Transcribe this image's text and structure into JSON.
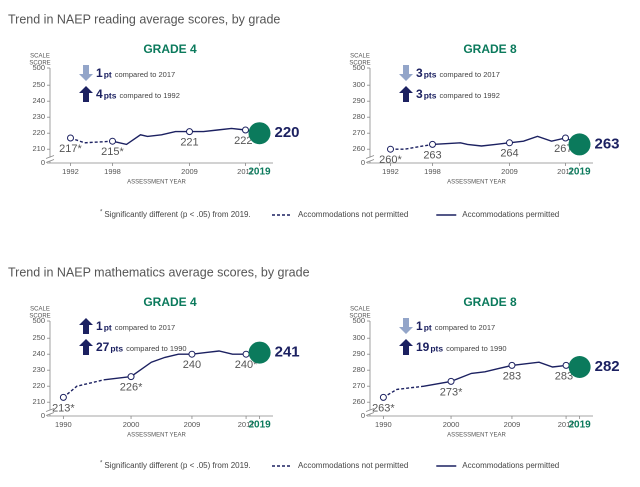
{
  "sections": [
    {
      "title": "Trend in NAEP reading average scores, by grade",
      "footnote": {
        "mark": "*",
        "text": "Significantly different (p < .05) from 2019."
      }
    },
    {
      "title": "Trend in NAEP mathematics average scores, by grade",
      "footnote": {
        "mark": "*",
        "text": "Significantly different (p < .05) from 2019."
      }
    }
  ],
  "chart_data": [
    {
      "type": "line",
      "title": "GRADE 4",
      "y_label": [
        "SCALE",
        "SCORE"
      ],
      "x_label": "ASSESSMENT YEAR",
      "xlim": [
        1990.5,
        2019.5
      ],
      "xticks": [
        1992,
        1998,
        2009,
        2017,
        2019
      ],
      "ylim": [
        207,
        252
      ],
      "yticks": [
        0,
        210,
        220,
        230,
        240,
        250,
        500
      ],
      "axis_break": true,
      "line_color": "#1c2161",
      "highlight_color": "#0b7a5c",
      "comparisons": [
        {
          "direction": "down",
          "value": 1,
          "unit": "pt",
          "text": "compared to 2017"
        },
        {
          "direction": "up",
          "value": 4,
          "unit": "pts",
          "text": "compared to 1992"
        }
      ],
      "series": [
        {
          "name": "Accommodations not permitted",
          "dash": true,
          "x": [
            1992,
            1994,
            1998
          ],
          "values": [
            217,
            214,
            215
          ],
          "value_labels": [
            "217*",
            null,
            null
          ]
        },
        {
          "name": "Accommodations permitted",
          "dash": false,
          "x": [
            1998,
            2000,
            2002,
            2003,
            2005,
            2007,
            2009,
            2011,
            2013,
            2015,
            2017,
            2019
          ],
          "values": [
            215,
            213,
            219,
            218,
            219,
            221,
            221,
            221,
            222,
            223,
            222,
            220
          ],
          "value_labels": [
            "215*",
            null,
            null,
            null,
            null,
            null,
            "221",
            null,
            null,
            null,
            "222*",
            "220"
          ]
        }
      ]
    },
    {
      "type": "line",
      "title": "GRADE 8",
      "y_label": [
        "SCALE",
        "SCORE"
      ],
      "x_label": "ASSESSMENT YEAR",
      "xlim": [
        1990.5,
        2019.5
      ],
      "xticks": [
        1992,
        1998,
        2009,
        2017,
        2019
      ],
      "ylim": [
        257,
        302
      ],
      "yticks": [
        0,
        260,
        270,
        280,
        290,
        300,
        500
      ],
      "axis_break": true,
      "line_color": "#1c2161",
      "highlight_color": "#0b7a5c",
      "comparisons": [
        {
          "direction": "down",
          "value": 3,
          "unit": "pts",
          "text": "compared to 2017"
        },
        {
          "direction": "up",
          "value": 3,
          "unit": "pts",
          "text": "compared to 1992"
        }
      ],
      "series": [
        {
          "name": "Accommodations not permitted",
          "dash": true,
          "x": [
            1992,
            1994,
            1998
          ],
          "values": [
            260,
            260,
            263
          ],
          "value_labels": [
            "260*",
            null,
            null
          ]
        },
        {
          "name": "Accommodations permitted",
          "dash": false,
          "x": [
            1998,
            2002,
            2003,
            2005,
            2007,
            2009,
            2011,
            2013,
            2015,
            2017,
            2019
          ],
          "values": [
            263,
            264,
            263,
            262,
            263,
            264,
            265,
            268,
            265,
            267,
            263
          ],
          "value_labels": [
            "263",
            null,
            null,
            null,
            null,
            "264",
            null,
            null,
            null,
            "267*",
            "263"
          ]
        }
      ]
    },
    {
      "type": "line",
      "title": "GRADE 4",
      "y_label": [
        "SCALE",
        "SCORE"
      ],
      "x_label": "ASSESSMENT YEAR",
      "xlim": [
        1989.5,
        2019.5
      ],
      "xticks": [
        1990,
        2000,
        2009,
        2017,
        2019
      ],
      "ylim": [
        207,
        252
      ],
      "yticks": [
        0,
        210,
        220,
        230,
        240,
        250,
        500
      ],
      "axis_break": true,
      "line_color": "#1c2161",
      "highlight_color": "#0b7a5c",
      "comparisons": [
        {
          "direction": "up",
          "value": 1,
          "unit": "pt",
          "text": "compared to 2017"
        },
        {
          "direction": "up",
          "value": 27,
          "unit": "pts",
          "text": "compared to 1990"
        }
      ],
      "series": [
        {
          "name": "Accommodations not permitted",
          "dash": true,
          "x": [
            1990,
            1992,
            1996
          ],
          "values": [
            213,
            220,
            224
          ],
          "value_labels": [
            "213*",
            null,
            null
          ]
        },
        {
          "name": "Accommodations permitted",
          "dash": false,
          "x": [
            1996,
            2000,
            2003,
            2005,
            2007,
            2009,
            2011,
            2013,
            2015,
            2017,
            2019
          ],
          "values": [
            224,
            226,
            235,
            238,
            240,
            240,
            241,
            242,
            240,
            240,
            241
          ],
          "value_labels": [
            null,
            "226*",
            null,
            null,
            null,
            "240",
            null,
            null,
            null,
            "240*",
            "241"
          ]
        }
      ]
    },
    {
      "type": "line",
      "title": "GRADE 8",
      "y_label": [
        "SCALE",
        "SCORE"
      ],
      "x_label": "ASSESSMENT YEAR",
      "xlim": [
        1989.5,
        2019.5
      ],
      "xticks": [
        1990,
        2000,
        2009,
        2017,
        2019
      ],
      "ylim": [
        257,
        302
      ],
      "yticks": [
        0,
        260,
        270,
        280,
        290,
        300,
        500
      ],
      "axis_break": true,
      "line_color": "#1c2161",
      "highlight_color": "#0b7a5c",
      "comparisons": [
        {
          "direction": "down",
          "value": 1,
          "unit": "pt",
          "text": "compared to 2017"
        },
        {
          "direction": "up",
          "value": 19,
          "unit": "pts",
          "text": "compared to 1990"
        }
      ],
      "series": [
        {
          "name": "Accommodations not permitted",
          "dash": true,
          "x": [
            1990,
            1992,
            1996
          ],
          "values": [
            263,
            268,
            270
          ],
          "value_labels": [
            "263*",
            null,
            null
          ]
        },
        {
          "name": "Accommodations permitted",
          "dash": false,
          "x": [
            1996,
            2000,
            2003,
            2005,
            2007,
            2009,
            2011,
            2013,
            2015,
            2017,
            2019
          ],
          "values": [
            270,
            273,
            278,
            279,
            281,
            283,
            284,
            285,
            282,
            283,
            282
          ],
          "value_labels": [
            null,
            "273*",
            null,
            null,
            null,
            "283",
            null,
            null,
            null,
            "283*",
            "282"
          ]
        }
      ]
    }
  ]
}
